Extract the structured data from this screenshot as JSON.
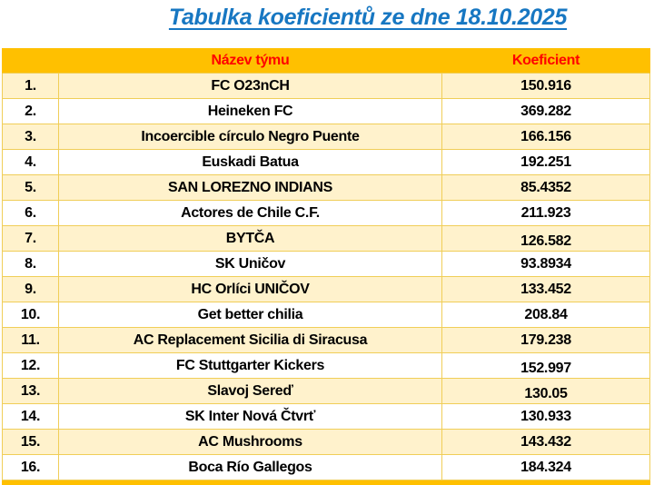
{
  "title": "Tabulka koeficientů ze dne 18.10.2025",
  "colors": {
    "title_blue": "#1777C2",
    "header_orange": "#FFC000",
    "header_text_red": "#FF0000",
    "row_cream": "#FFF2CC",
    "row_white": "#FFFFFF",
    "border_gold": "#F0CE58"
  },
  "table": {
    "header": {
      "rank": "",
      "team": "Název týmu",
      "coef": "Koeficient"
    },
    "rows": [
      {
        "rank": "1.",
        "team": "FC O23nCH",
        "coef": "150.916"
      },
      {
        "rank": "2.",
        "team": "Heineken FC",
        "coef": "369.282"
      },
      {
        "rank": "3.",
        "team": "Incoercible círculo Negro Puente",
        "coef": "166.156"
      },
      {
        "rank": "4.",
        "team": "Euskadi Batua",
        "coef": "192.251"
      },
      {
        "rank": "5.",
        "team": "SAN LOREZNO INDIANS",
        "coef": "85.4352"
      },
      {
        "rank": "6.",
        "team": "Actores de Chile C.F.",
        "coef": "211.923"
      },
      {
        "rank": "7.",
        "team": "BYTČA",
        "coef": "126.582",
        "coef_shift": true
      },
      {
        "rank": "8.",
        "team": "SK Uničov",
        "coef": "93.8934"
      },
      {
        "rank": "9.",
        "team": "HC Orlíci UNIČOV",
        "coef": "133.452"
      },
      {
        "rank": "10.",
        "team": "Get better chilia",
        "coef": "208.84"
      },
      {
        "rank": "11.",
        "team": "AC Replacement Sicilia di Siracusa",
        "coef": "179.238"
      },
      {
        "rank": "12.",
        "team": "FC Stuttgarter Kickers",
        "coef": "152.997",
        "coef_shift": true
      },
      {
        "rank": "13.",
        "team": "Slavoj Sereď",
        "coef": "130.05",
        "coef_shift": true
      },
      {
        "rank": "14.",
        "team": "SK Inter Nová Čtvrť",
        "coef": "130.933"
      },
      {
        "rank": "15.",
        "team": "AC Mushrooms",
        "coef": "143.432"
      },
      {
        "rank": "16.",
        "team": "Boca Río Gallegos",
        "coef": "184.324"
      }
    ]
  }
}
